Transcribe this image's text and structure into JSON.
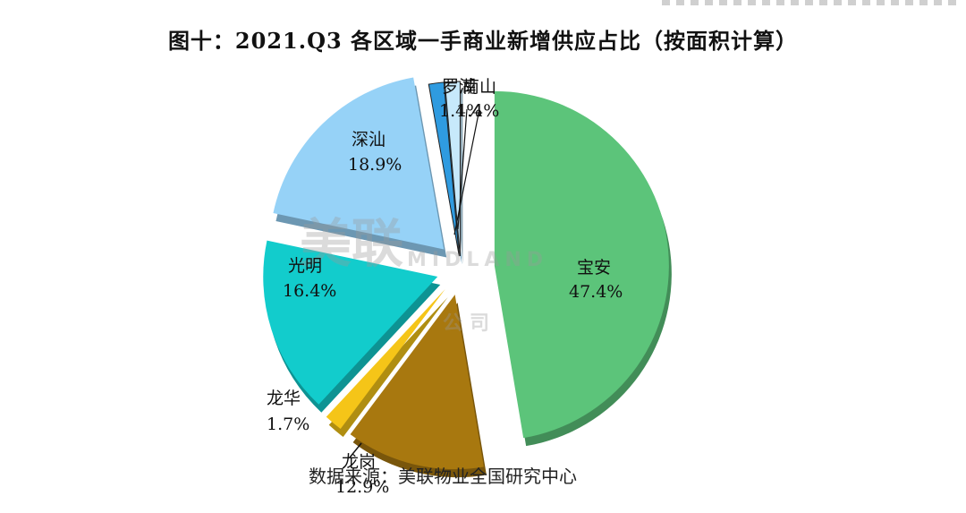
{
  "chart_data": {
    "type": "pie",
    "title": "图十：2021.Q3 各区域一手商业新增供应占比（按面积计算）",
    "categories": [
      "宝安",
      "龙岗",
      "龙华",
      "光明",
      "深汕",
      "罗湖",
      "南山"
    ],
    "values": [
      47.4,
      12.9,
      1.7,
      16.4,
      18.9,
      1.4,
      1.4
    ],
    "labels": [
      "47.4%",
      "12.9%",
      "1.7%",
      "16.4%",
      "18.9%",
      "1.4%",
      "1.4%"
    ],
    "colors": [
      "#5cc47a",
      "#a8780f",
      "#f5c518",
      "#12cccc",
      "#96d2f7",
      "#2f9be0",
      "#c7e9fb"
    ],
    "start_angle_deg": -90,
    "direction": "clockwise",
    "exploded": true,
    "legend": "none",
    "source": "数据来源：美联物业全国研究中心"
  },
  "title": "图十：2021.Q3 各区域一手商业新增供应占比（按面积计算）",
  "source": "数据来源：美联物业全国研究中心",
  "watermark": {
    "cn": "美联",
    "en": "MIDLAND",
    "sub": "公司"
  },
  "labels": {
    "baoan": {
      "name": "宝安",
      "pct": "47.4%"
    },
    "longgang": {
      "name": "龙岗",
      "pct": "12.9%"
    },
    "longhua": {
      "name": "龙华",
      "pct": "1.7%"
    },
    "guangming": {
      "name": "光明",
      "pct": "16.4%"
    },
    "shenshan": {
      "name": "深汕",
      "pct": "18.9%"
    },
    "luohu": {
      "name": "罗湖",
      "pct": "1.4%"
    },
    "nanshan": {
      "name": "南山",
      "pct": "1.4%"
    }
  }
}
